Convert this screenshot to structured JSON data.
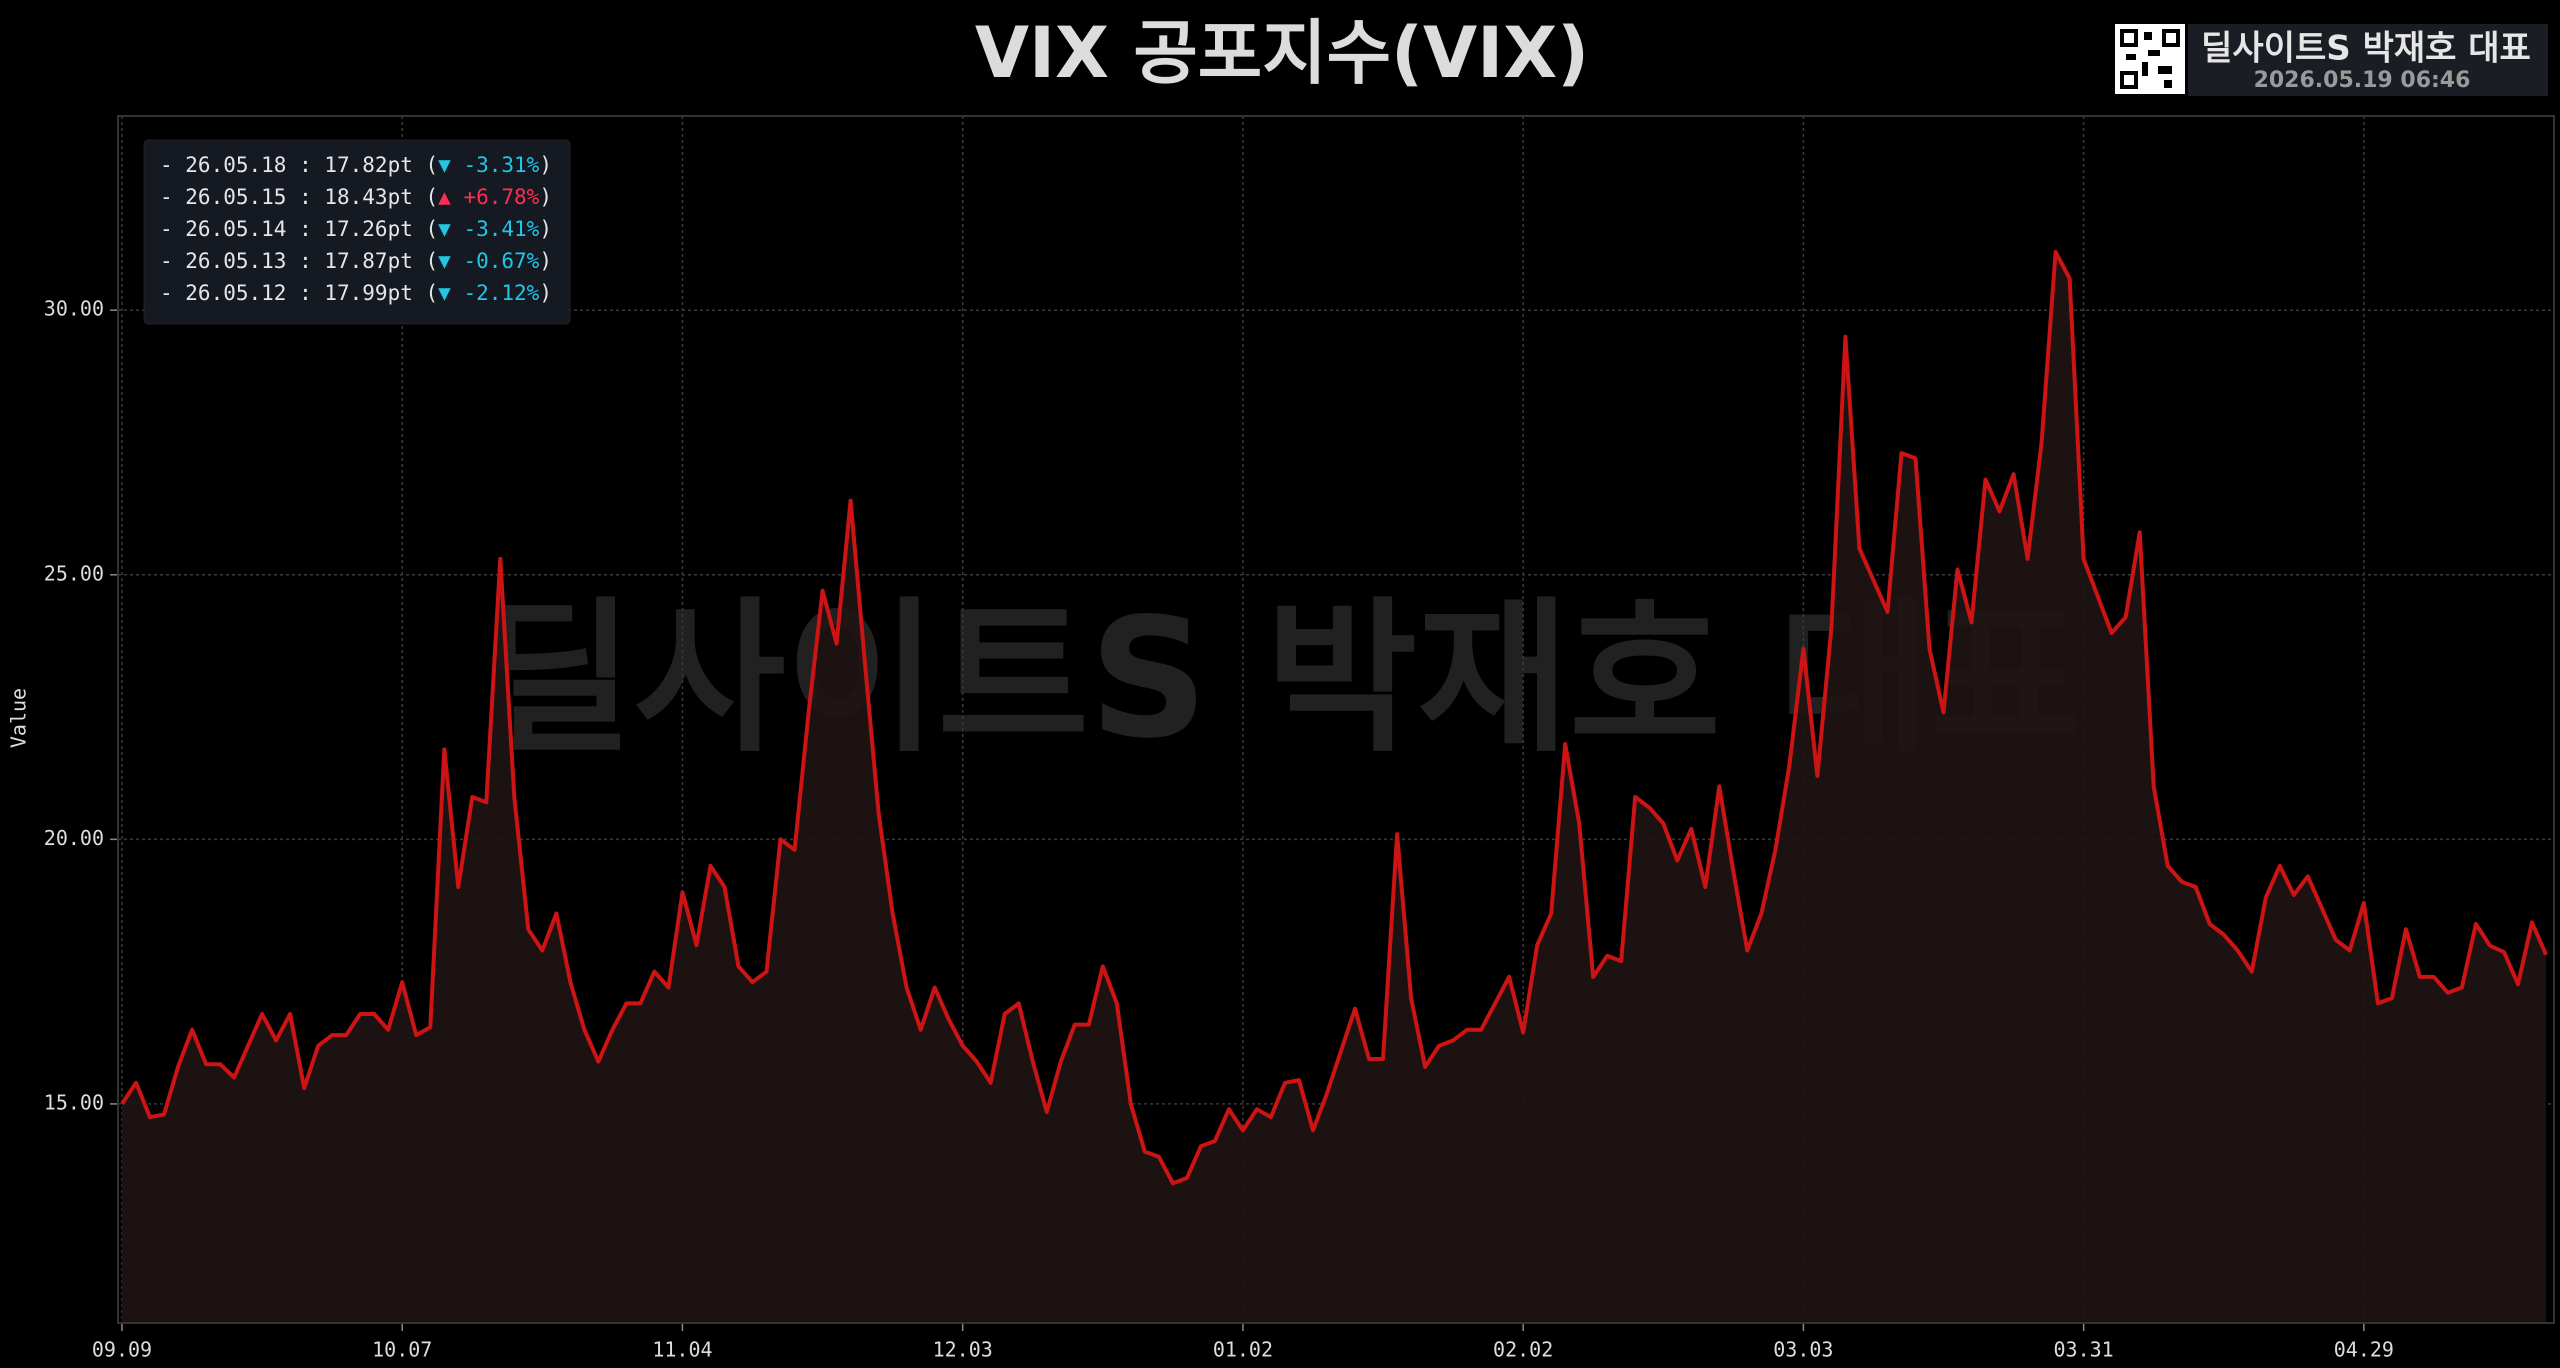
{
  "chart_data": {
    "type": "line",
    "title": "VIX 공포지수(VIX)",
    "brand": "딜사이트S 박재호 대표",
    "timestamp": "2026.05.19 06:46",
    "ylabel": "Value",
    "categories": [
      "09.09",
      null,
      null,
      null,
      null,
      null,
      null,
      null,
      null,
      null,
      null,
      null,
      null,
      null,
      null,
      null,
      null,
      null,
      null,
      null,
      "10.07",
      null,
      null,
      null,
      null,
      null,
      null,
      null,
      null,
      null,
      null,
      null,
      null,
      null,
      null,
      null,
      null,
      null,
      null,
      null,
      "11.04",
      null,
      null,
      null,
      null,
      null,
      null,
      null,
      null,
      null,
      null,
      null,
      null,
      null,
      null,
      null,
      null,
      null,
      null,
      null,
      "12.03",
      null,
      null,
      null,
      null,
      null,
      null,
      null,
      null,
      null,
      null,
      null,
      null,
      null,
      null,
      null,
      null,
      null,
      null,
      null,
      "01.02",
      null,
      null,
      null,
      null,
      null,
      null,
      null,
      null,
      null,
      null,
      null,
      null,
      null,
      null,
      null,
      null,
      null,
      null,
      null,
      "02.02",
      null,
      null,
      null,
      null,
      null,
      null,
      null,
      null,
      null,
      null,
      null,
      null,
      null,
      null,
      null,
      null,
      null,
      null,
      null,
      "03.03",
      null,
      null,
      null,
      null,
      null,
      null,
      null,
      null,
      null,
      null,
      null,
      null,
      null,
      null,
      null,
      null,
      null,
      null,
      null,
      "03.31",
      null,
      null,
      null,
      null,
      null,
      null,
      null,
      null,
      null,
      null,
      null,
      null,
      null,
      null,
      null,
      null,
      null,
      null,
      null,
      "04.29",
      null,
      null,
      null,
      null,
      null,
      null,
      null,
      null,
      null,
      null,
      null,
      null,
      null
    ],
    "series": [
      {
        "name": "VIX",
        "color": "#cc1414",
        "fill": "#1f1414",
        "values": [
          15.0,
          15.4,
          14.75,
          14.8,
          15.7,
          16.4,
          15.75,
          15.75,
          15.5,
          16.1,
          16.7,
          16.2,
          16.7,
          15.3,
          16.1,
          16.3,
          16.3,
          16.7,
          16.7,
          16.4,
          17.3,
          16.3,
          16.45,
          21.7,
          19.1,
          20.8,
          20.7,
          25.3,
          20.8,
          18.3,
          17.9,
          18.6,
          17.3,
          16.4,
          15.8,
          16.4,
          16.9,
          16.9,
          17.5,
          17.2,
          19.0,
          18.0,
          19.5,
          19.1,
          17.6,
          17.3,
          17.5,
          20.0,
          19.8,
          22.4,
          24.7,
          23.7,
          26.4,
          23.4,
          20.5,
          18.6,
          17.2,
          16.4,
          17.2,
          16.6,
          16.1,
          15.8,
          15.4,
          16.7,
          16.9,
          15.8,
          14.85,
          15.8,
          16.5,
          16.5,
          17.6,
          16.9,
          15.0,
          14.1,
          14.0,
          13.5,
          13.6,
          14.2,
          14.3,
          14.9,
          14.5,
          14.9,
          14.75,
          15.4,
          15.45,
          14.5,
          15.2,
          16.0,
          16.8,
          15.85,
          15.85,
          20.1,
          17.0,
          15.7,
          16.1,
          16.2,
          16.4,
          16.4,
          16.9,
          17.4,
          16.35,
          18.0,
          18.6,
          21.8,
          20.3,
          17.4,
          17.8,
          17.7,
          20.8,
          20.6,
          20.3,
          19.6,
          20.2,
          19.1,
          21.0,
          19.4,
          17.9,
          18.6,
          19.8,
          21.4,
          23.6,
          21.2,
          24.0,
          29.5,
          25.5,
          24.9,
          24.3,
          27.3,
          27.2,
          23.6,
          22.4,
          25.1,
          24.1,
          26.8,
          26.2,
          26.9,
          25.3,
          27.5,
          31.1,
          30.6,
          25.3,
          24.6,
          23.9,
          24.2,
          25.8,
          21.0,
          19.5,
          19.2,
          19.1,
          18.4,
          18.2,
          17.9,
          17.5,
          18.9,
          19.5,
          18.95,
          19.3,
          18.7,
          18.1,
          17.9,
          18.8,
          16.9,
          17.0,
          18.3,
          17.4,
          17.4,
          17.1,
          17.2,
          18.4,
          17.99,
          17.87,
          17.26,
          18.43,
          17.82
        ]
      }
    ],
    "ylim": [
      10.86,
      33.67
    ],
    "yticks": [
      {
        "value": 15,
        "label": "15.00"
      },
      {
        "value": 20,
        "label": "20.00"
      },
      {
        "value": 25,
        "label": "25.00"
      },
      {
        "value": 30,
        "label": "30.00"
      }
    ],
    "grid": true,
    "legend_corner": "upper left",
    "annotations": [
      {
        "text": "- 26.05.18 : 17.82pt (",
        "change": "▼ -3.31%",
        "close": ")",
        "color": "#22c7e6"
      },
      {
        "text": "- 26.05.15 : 18.43pt (",
        "change": "▲ +6.78%",
        "close": ")",
        "color": "#ff2d55"
      },
      {
        "text": "- 26.05.14 : 17.26pt (",
        "change": "▼ -3.41%",
        "close": ")",
        "color": "#22c7e6"
      },
      {
        "text": "- 26.05.13 : 17.87pt (",
        "change": "▼ -0.67%",
        "close": ")",
        "color": "#22c7e6"
      },
      {
        "text": "- 26.05.12 : 17.99pt (",
        "change": "▼ -2.12%",
        "close": ")",
        "color": "#22c7e6"
      }
    ]
  }
}
